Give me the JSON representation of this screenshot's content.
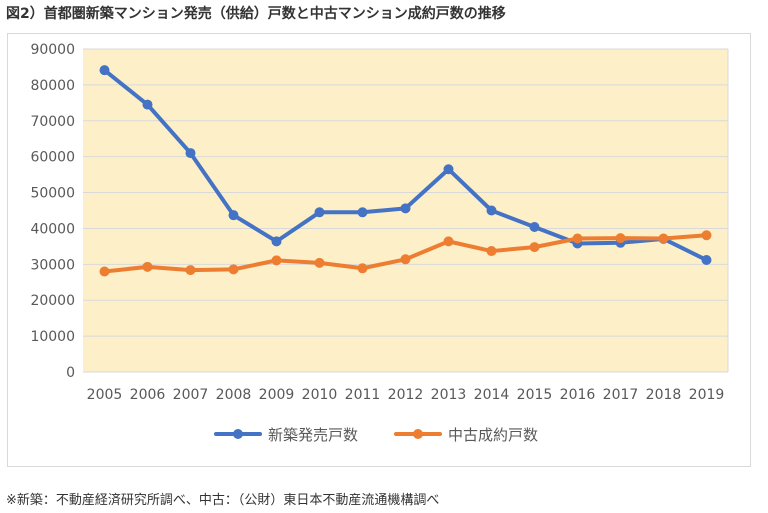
{
  "title": "図2）首都圏新築マンション発売（供給）戸数と中古マンション成約戸数の推移",
  "source_note": "※新築：不動産経済研究所調べ、中古：（公財）東日本不動産流通機構調べ",
  "colors": {
    "plot_bg": "#fdf0c8",
    "grid": "#d9d9d9",
    "series_new": "#4472c4",
    "series_used": "#ed7d31"
  },
  "chart_data": {
    "type": "line",
    "title": "図2）首都圏新築マンション発売（供給）戸数と中古マンション成約戸数の推移",
    "xlabel": "",
    "ylabel": "",
    "ylim": [
      0,
      90000
    ],
    "yticks": [
      "0",
      "10000",
      "20000",
      "30000",
      "40000",
      "50000",
      "60000",
      "70000",
      "80000",
      "90000"
    ],
    "categories": [
      "2005",
      "2006",
      "2007",
      "2008",
      "2009",
      "2010",
      "2011",
      "2012",
      "2013",
      "2014",
      "2015",
      "2016",
      "2017",
      "2018",
      "2019"
    ],
    "grid": true,
    "legend_position": "bottom",
    "series": [
      {
        "name": "新築発売戸数",
        "values": [
          84100,
          74500,
          61000,
          43700,
          36400,
          44500,
          44500,
          45600,
          56500,
          45000,
          40400,
          35800,
          36000,
          37100,
          31200
        ]
      },
      {
        "name": "中古成約戸数",
        "values": [
          28000,
          29300,
          28400,
          28600,
          31100,
          30400,
          28900,
          31400,
          36400,
          33700,
          34800,
          37200,
          37300,
          37200,
          38100
        ]
      }
    ]
  }
}
